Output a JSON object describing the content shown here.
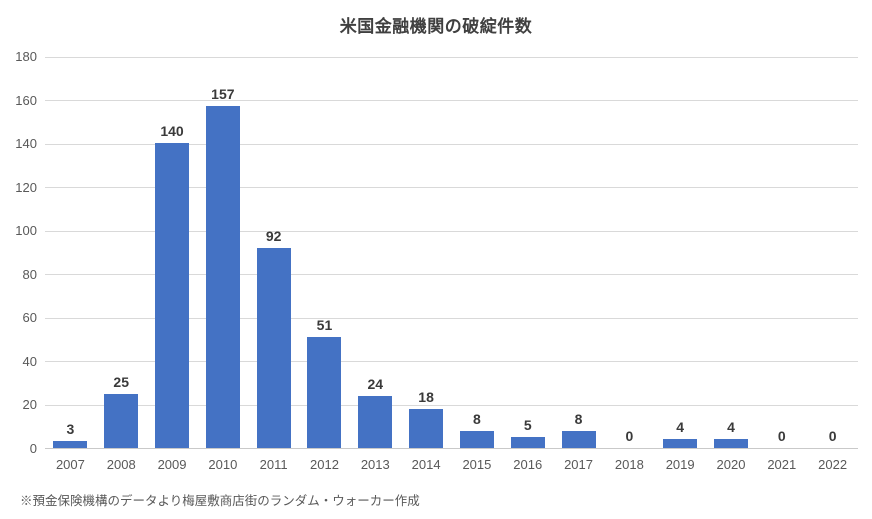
{
  "title": "米国金融機関の破綻件数",
  "footer_note": "※預金保険機構のデータより梅屋敷商店街のランダム・ウォーカー作成",
  "colors": {
    "bar": "#4472c4",
    "gridline": "#d9d9d9",
    "axis_line": "#c9c9c9",
    "title_text": "#404040",
    "data_label_text": "#3a3a3a",
    "axis_text": "#595959"
  },
  "chart_data": {
    "type": "bar",
    "title": "米国金融機関の破綻件数",
    "categories": [
      "2007",
      "2008",
      "2009",
      "2010",
      "2011",
      "2012",
      "2013",
      "2014",
      "2015",
      "2016",
      "2017",
      "2018",
      "2019",
      "2020",
      "2021",
      "2022"
    ],
    "values": [
      3,
      25,
      140,
      157,
      92,
      51,
      24,
      18,
      8,
      5,
      8,
      0,
      4,
      4,
      0,
      0
    ],
    "xlabel": "",
    "ylabel": "",
    "ylim": [
      0,
      180
    ],
    "yticks": [
      0,
      20,
      40,
      60,
      80,
      100,
      120,
      140,
      160,
      180
    ],
    "grid": true,
    "legend": false,
    "data_labels": true,
    "annotation": "※預金保険機構のデータより梅屋敷商店街のランダム・ウォーカー作成"
  }
}
